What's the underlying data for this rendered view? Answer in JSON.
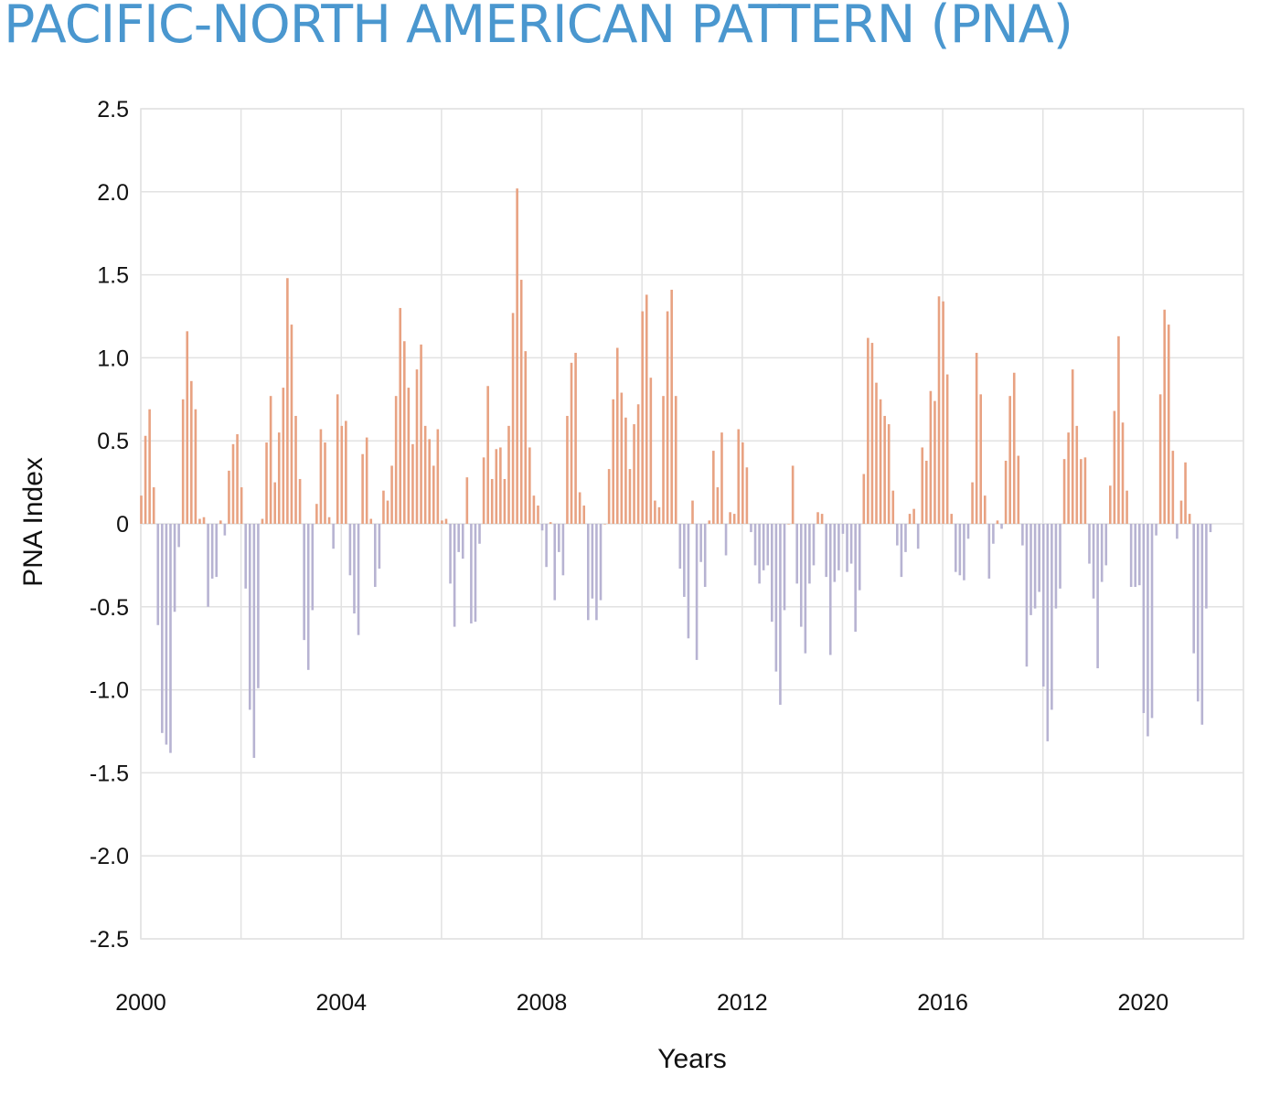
{
  "title": "PACIFIC-NORTH AMERICAN PATTERN (PNA)",
  "colors": {
    "positive": "#e8a282",
    "negative": "#b7b3d2",
    "title": "#4a97cf",
    "grid": "#e2e2e2"
  },
  "chart_data": {
    "type": "bar",
    "title": "PACIFIC-NORTH AMERICAN PATTERN (PNA)",
    "xlabel": "Years",
    "ylabel": "PNA Index",
    "ylim": [
      -2.5,
      2.5
    ],
    "xlim": [
      2000,
      2022
    ],
    "grid": true,
    "frequency": "monthly",
    "start": "2000-01",
    "y_ticks": [
      "2.5",
      "2.0",
      "1.5",
      "1.0",
      "0.5",
      "0",
      "-0.5",
      "-1.0",
      "-1.5",
      "-2.0",
      "-2.5"
    ],
    "y_tick_values": [
      2.5,
      2.0,
      1.5,
      1.0,
      0.5,
      0,
      -0.5,
      -1.0,
      -1.5,
      -2.0,
      -2.5
    ],
    "x_ticks": [
      "2000",
      "2004",
      "2008",
      "2012",
      "2016",
      "2020"
    ],
    "x_tick_values": [
      2000,
      2004,
      2008,
      2012,
      2016,
      2020
    ],
    "values": [
      0.17,
      0.53,
      0.69,
      0.22,
      -0.61,
      -1.26,
      -1.33,
      -1.38,
      -0.53,
      -0.14,
      0.75,
      1.16,
      0.86,
      0.69,
      0.03,
      0.04,
      -0.5,
      -0.33,
      -0.32,
      0.02,
      -0.07,
      0.32,
      0.48,
      0.54,
      0.22,
      -0.39,
      -1.12,
      -1.41,
      -0.99,
      0.03,
      0.49,
      0.77,
      0.25,
      0.55,
      0.82,
      1.48,
      1.2,
      0.65,
      0.27,
      -0.7,
      -0.88,
      -0.52,
      0.12,
      0.57,
      0.49,
      0.04,
      -0.15,
      0.78,
      0.59,
      0.62,
      -0.31,
      -0.54,
      -0.67,
      0.42,
      0.52,
      0.03,
      -0.38,
      -0.27,
      0.2,
      0.14,
      0.35,
      0.77,
      1.3,
      1.1,
      0.82,
      0.48,
      0.93,
      1.08,
      0.59,
      0.51,
      0.35,
      0.57,
      0.02,
      0.03,
      -0.36,
      -0.62,
      -0.17,
      -0.21,
      0.28,
      -0.6,
      -0.59,
      -0.12,
      0.4,
      0.83,
      0.27,
      0.45,
      0.46,
      0.27,
      0.59,
      1.27,
      2.02,
      1.47,
      1.04,
      0.46,
      0.17,
      0.11,
      -0.04,
      -0.26,
      0.01,
      -0.46,
      -0.17,
      -0.31,
      0.65,
      0.97,
      1.03,
      0.19,
      0.11,
      -0.58,
      -0.45,
      -0.58,
      -0.46,
      0.0,
      0.33,
      0.75,
      1.06,
      0.79,
      0.64,
      0.33,
      0.6,
      0.72,
      1.28,
      1.38,
      0.88,
      0.14,
      0.1,
      0.77,
      1.28,
      1.41,
      0.77,
      -0.27,
      -0.44,
      -0.69,
      0.14,
      -0.82,
      -0.23,
      -0.38,
      0.02,
      0.44,
      0.22,
      0.55,
      -0.19,
      0.07,
      0.06,
      0.57,
      0.49,
      0.34,
      -0.05,
      -0.25,
      -0.36,
      -0.28,
      -0.25,
      -0.59,
      -0.89,
      -1.09,
      -0.52,
      0.0,
      0.35,
      -0.36,
      -0.62,
      -0.78,
      -0.36,
      -0.25,
      0.07,
      0.06,
      -0.32,
      -0.79,
      -0.35,
      -0.28,
      -0.06,
      -0.29,
      -0.24,
      -0.65,
      -0.4,
      0.3,
      1.12,
      1.09,
      0.85,
      0.75,
      0.65,
      0.6,
      0.2,
      -0.13,
      -0.32,
      -0.17,
      0.06,
      0.09,
      -0.15,
      0.46,
      0.38,
      0.8,
      0.74,
      1.37,
      1.34,
      0.9,
      0.06,
      -0.29,
      -0.31,
      -0.34,
      -0.09,
      0.25,
      1.03,
      0.78,
      0.17,
      -0.33,
      -0.12,
      0.02,
      -0.03,
      0.38,
      0.77,
      0.91,
      0.41,
      -0.13,
      -0.86,
      -0.55,
      -0.51,
      -0.41,
      -0.98,
      -1.31,
      -1.12,
      -0.51,
      -0.39,
      0.39,
      0.55,
      0.93,
      0.59,
      0.39,
      0.4,
      -0.24,
      -0.45,
      -0.87,
      -0.35,
      -0.25,
      0.23,
      0.68,
      1.13,
      0.61,
      0.2,
      -0.38,
      -0.38,
      -0.37,
      -1.14,
      -1.28,
      -1.17,
      -0.07,
      0.78,
      1.29,
      1.2,
      0.44,
      -0.09,
      0.14,
      0.37,
      0.06,
      -0.78,
      -1.07,
      -1.21,
      -0.51,
      -0.05
    ]
  }
}
